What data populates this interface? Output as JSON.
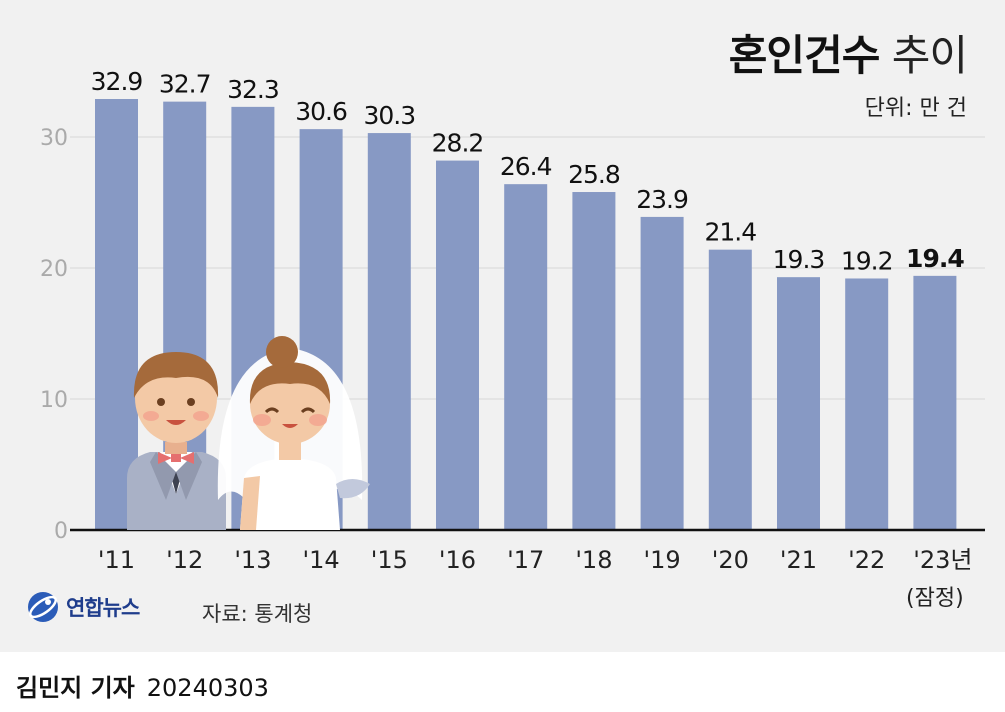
{
  "chart_data": {
    "type": "bar",
    "title": "혼인건수",
    "title_suffix": "추이",
    "unit": "단위: 만 건",
    "categories": [
      "'11",
      "'12",
      "'13",
      "'14",
      "'15",
      "'16",
      "'17",
      "'18",
      "'19",
      "'20",
      "'21",
      "'22",
      "'23년"
    ],
    "category_note": "(잠정)",
    "values": [
      32.9,
      32.7,
      32.3,
      30.6,
      30.3,
      28.2,
      26.4,
      25.8,
      23.9,
      21.4,
      19.3,
      19.2,
      19.4
    ],
    "value_labels": [
      "32.9",
      "32.7",
      "32.3",
      "30.6",
      "30.3",
      "28.2",
      "26.4",
      "25.8",
      "23.9",
      "21.4",
      "19.3",
      "19.2",
      "19.4"
    ],
    "highlight_index": 12,
    "yticks": [
      "0",
      "10",
      "20",
      "30"
    ],
    "ylim": [
      0,
      35
    ],
    "grid": true,
    "bar_color": "#8799c4"
  },
  "footer": {
    "logo_text": "연합뉴스",
    "source": "자료: 통계청",
    "reporter": "김민지 기자",
    "date": "20240303"
  },
  "illustration": {
    "name": "bride-and-groom-icon"
  }
}
